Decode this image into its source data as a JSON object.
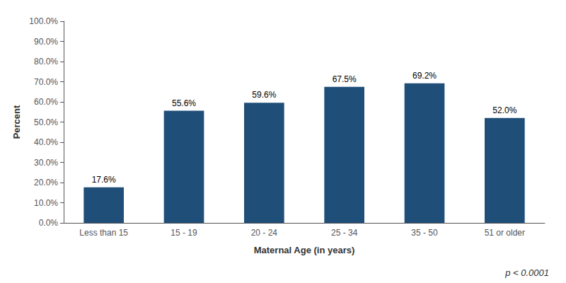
{
  "chart_data": {
    "type": "bar",
    "xlabel": "Maternal Age (in years)",
    "ylabel": "Percent",
    "categories": [
      "Less than 15",
      "15 - 19",
      "20 - 24",
      "25 - 34",
      "35 - 50",
      "51 or older"
    ],
    "values": [
      17.6,
      55.6,
      59.6,
      67.5,
      69.2,
      52.0
    ],
    "value_labels": [
      "17.6%",
      "55.6%",
      "59.6%",
      "67.5%",
      "69.2%",
      "52.0%"
    ],
    "data_labels": true,
    "color": "#1f4e79",
    "ylim": [
      0,
      100
    ],
    "yticks": [
      {
        "value": 0,
        "label": "0.0%"
      },
      {
        "value": 10,
        "label": "10.0%"
      },
      {
        "value": 20,
        "label": "20.0%"
      },
      {
        "value": 30,
        "label": "30.0%"
      },
      {
        "value": 40,
        "label": "40.0%"
      },
      {
        "value": 50,
        "label": "50.0%"
      },
      {
        "value": 60,
        "label": "60.0%"
      },
      {
        "value": 70,
        "label": "70.0%"
      },
      {
        "value": 80,
        "label": "80.0%"
      },
      {
        "value": 90,
        "label": "90.0%"
      },
      {
        "value": 100,
        "label": "100.0%"
      }
    ],
    "grid": false,
    "annotation": "p < 0.0001"
  }
}
